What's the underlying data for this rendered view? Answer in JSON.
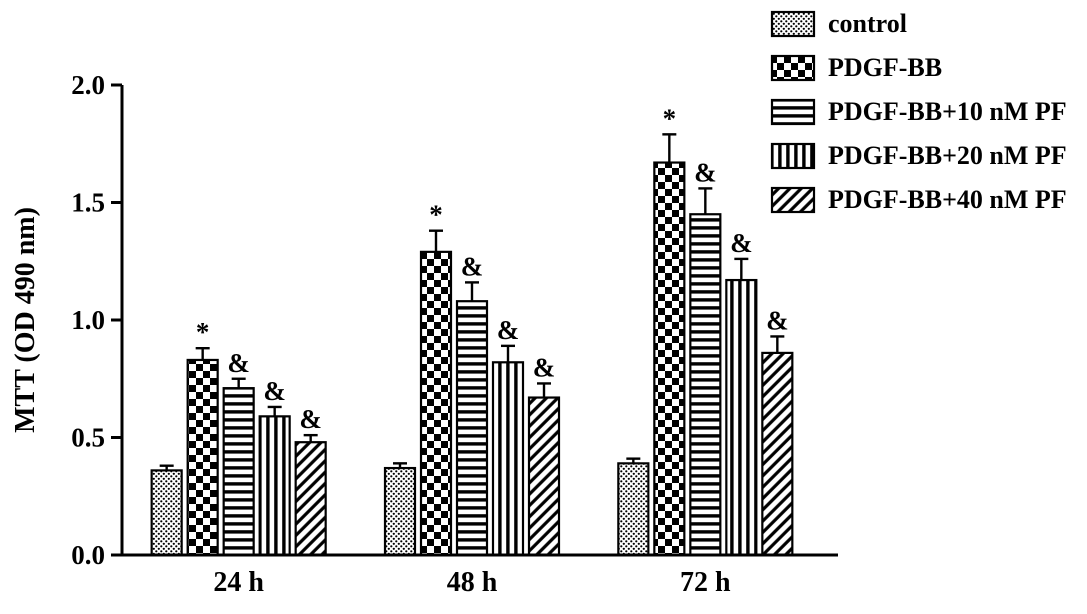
{
  "chart_data": {
    "type": "bar",
    "title": "",
    "xlabel": "",
    "ylabel": "MTT (OD 490 nm)",
    "ylim": [
      0,
      2.0
    ],
    "yticks": [
      0.0,
      0.5,
      1.0,
      1.5,
      2.0
    ],
    "categories": [
      "24 h",
      "48 h",
      "72 h"
    ],
    "series": [
      {
        "name": "control",
        "pattern": "dense-dots",
        "values": [
          0.36,
          0.37,
          0.39
        ],
        "errors": [
          0.02,
          0.02,
          0.02
        ],
        "annotations": [
          "",
          "",
          ""
        ]
      },
      {
        "name": "PDGF-BB",
        "pattern": "checkerboard",
        "values": [
          0.83,
          1.29,
          1.67
        ],
        "errors": [
          0.05,
          0.09,
          0.12
        ],
        "annotations": [
          "*",
          "*",
          "*"
        ]
      },
      {
        "name": "PDGF-BB+10 nM PF",
        "pattern": "horizontal-lines",
        "values": [
          0.71,
          1.08,
          1.45
        ],
        "errors": [
          0.04,
          0.08,
          0.11
        ],
        "annotations": [
          "&",
          "&",
          "&"
        ]
      },
      {
        "name": "PDGF-BB+20 nM PF",
        "pattern": "vertical-lines",
        "values": [
          0.59,
          0.82,
          1.17
        ],
        "errors": [
          0.04,
          0.07,
          0.09
        ],
        "annotations": [
          "&",
          "&",
          "&"
        ]
      },
      {
        "name": "PDGF-BB+40 nM PF",
        "pattern": "diagonal-lines",
        "values": [
          0.48,
          0.67,
          0.86
        ],
        "errors": [
          0.03,
          0.06,
          0.07
        ],
        "annotations": [
          "&",
          "&",
          "&"
        ]
      }
    ],
    "legend_position": "top-right",
    "grid": false,
    "bar_color": "#000000",
    "background": "#ffffff"
  }
}
